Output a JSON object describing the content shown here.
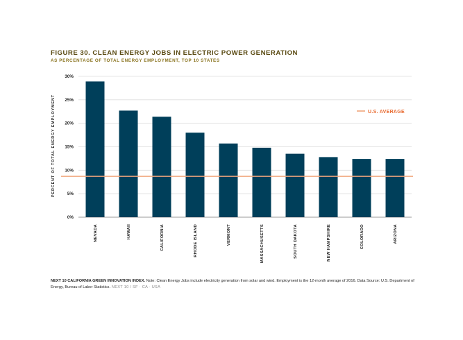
{
  "title": "FIGURE 30. CLEAN ENERGY JOBS IN ELECTRIC POWER GENERATION",
  "subtitle": "AS PERCENTAGE OF TOTAL ENERGY EMPLOYMENT, TOP 10 STATES",
  "footnote": {
    "source_bold": "NEXT 10 CALIFORNIA GREEN INNOVATION INDEX.",
    "note": " Note: Clean Energy Jobs include electricity generation from solar and wind. Employment is the 12-month average of 2016. Data Source: U.S. Department of Energy, Bureau of Labor Statistics.",
    "tail": " NEXT 10 / SF · CA · USA"
  },
  "colors": {
    "bar": "#003f5a",
    "average_line": "#f0a67c",
    "legend_text": "#e8692e",
    "title": "#5a4a12"
  },
  "chart_data": {
    "type": "bar",
    "categories": [
      "NEVADA",
      "HAWAII",
      "CALIFORNIA",
      "RHODE ISLAND",
      "VERMONT",
      "MASSACHUSETTS",
      "SOUTH DAKOTA",
      "NEW HAMPSHIRE",
      "COLORADO",
      "ARIZONA"
    ],
    "values": [
      28.9,
      22.7,
      21.4,
      18.0,
      15.7,
      14.8,
      13.5,
      12.8,
      12.4,
      12.4
    ],
    "ylabel": "PERCENT OF TOTAL ENERGY EMPLOYMENT",
    "ylim": [
      0,
      30
    ],
    "yticks": [
      "0%",
      "5%",
      "10%",
      "15%",
      "20%",
      "25%",
      "30%"
    ],
    "ytick_values": [
      0,
      5,
      10,
      15,
      20,
      25,
      30
    ],
    "grid": true,
    "reference_line": {
      "label": "U.S. AVERAGE",
      "value": 8.7
    },
    "legend_position": "right"
  }
}
